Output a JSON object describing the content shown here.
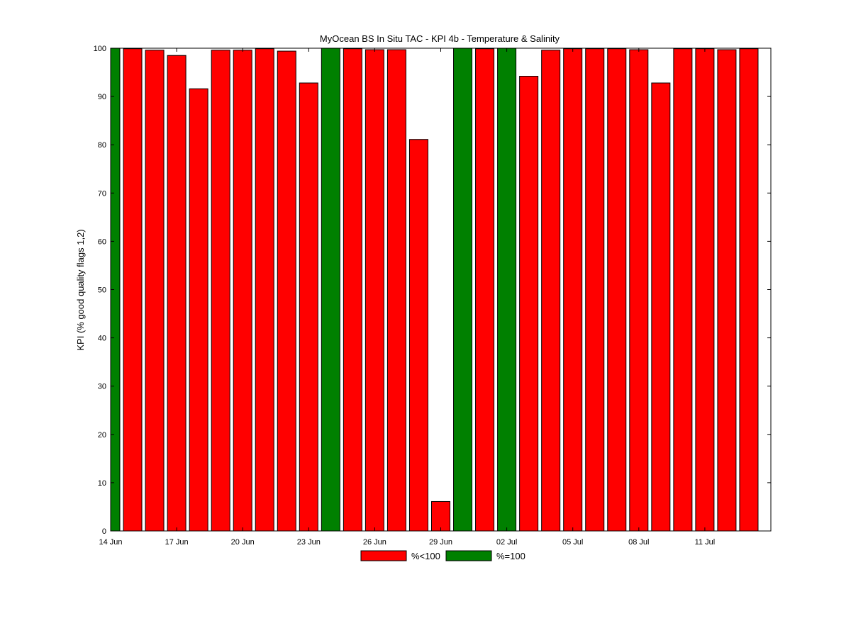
{
  "chart_data": {
    "type": "bar",
    "title": "MyOcean  BS In Situ TAC - KPI 4b - Temperature & Salinity",
    "xlabel": "",
    "ylabel": "KPI (% good quality flags 1,2)",
    "ylim": [
      0,
      100
    ],
    "yticks": [
      0,
      10,
      20,
      30,
      40,
      50,
      60,
      70,
      80,
      90,
      100
    ],
    "xtick_labels": [
      "14 Jun",
      "17 Jun",
      "20 Jun",
      "23 Jun",
      "26 Jun",
      "29 Jun",
      "02 Jul",
      "05 Jul",
      "08 Jul",
      "11 Jul"
    ],
    "grid": false,
    "legend_position": "bottom",
    "colors": {
      "lt100": "#ff0000",
      "eq100": "#008000"
    },
    "series": [
      {
        "name": "%<100",
        "color": "#ff0000"
      },
      {
        "name": "%=100",
        "color": "#008000"
      }
    ],
    "categories": [
      "14 Jun",
      "15 Jun",
      "16 Jun",
      "17 Jun",
      "18 Jun",
      "19 Jun",
      "20 Jun",
      "21 Jun",
      "22 Jun",
      "23 Jun",
      "24 Jun",
      "25 Jun",
      "26 Jun",
      "27 Jun",
      "28 Jun",
      "29 Jun",
      "30 Jun",
      "01 Jul",
      "02 Jul",
      "03 Jul",
      "04 Jul",
      "05 Jul",
      "06 Jul",
      "07 Jul",
      "08 Jul",
      "09 Jul",
      "10 Jul",
      "11 Jul",
      "12 Jul",
      "13 Jul"
    ],
    "values": [
      100,
      99.9,
      99.6,
      98.5,
      91.6,
      99.6,
      99.6,
      99.9,
      99.4,
      92.8,
      100,
      99.9,
      99.7,
      99.7,
      81.1,
      6.1,
      100,
      99.9,
      100,
      94.2,
      99.6,
      99.9,
      99.9,
      99.9,
      99.7,
      92.8,
      99.9,
      99.9,
      99.7,
      99.9
    ],
    "is_full": [
      true,
      false,
      false,
      false,
      false,
      false,
      false,
      false,
      false,
      false,
      true,
      false,
      false,
      false,
      false,
      false,
      true,
      false,
      true,
      false,
      false,
      false,
      false,
      false,
      false,
      false,
      false,
      false,
      false,
      false
    ]
  }
}
